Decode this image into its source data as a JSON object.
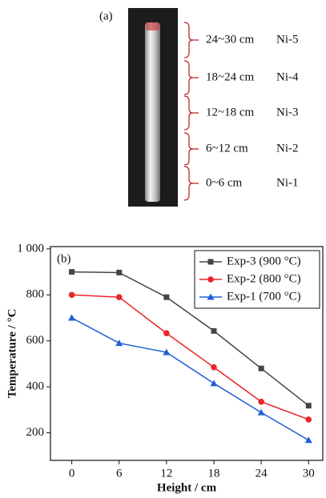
{
  "photo_panel": {
    "label": "(a)",
    "segments": [
      {
        "range": "24~30 cm",
        "sample": "Ni-5"
      },
      {
        "range": "18~24 cm",
        "sample": "Ni-4"
      },
      {
        "range": "12~18 cm",
        "sample": "Ni-3"
      },
      {
        "range": "6~12 cm",
        "sample": "Ni-2"
      },
      {
        "range": "0~6 cm",
        "sample": "Ni-1"
      }
    ]
  },
  "chart_data": {
    "type": "line",
    "panel_label": "(b)",
    "x_label": "Height / cm",
    "y_label": "Temperature / °C",
    "x": [
      0,
      6,
      12,
      18,
      24,
      30
    ],
    "series": [
      {
        "name": "Exp-3 (900 °C)",
        "color": "#454545",
        "marker": "square",
        "values": [
          900,
          897,
          790,
          643,
          480,
          318
        ]
      },
      {
        "name": "Exp-2 (800 °C)",
        "color": "#e8262b",
        "marker": "circle",
        "values": [
          800,
          790,
          633,
          485,
          335,
          258
        ]
      },
      {
        "name": "Exp-1 (700 °C)",
        "color": "#1f5fd6",
        "marker": "triangle",
        "values": [
          700,
          590,
          550,
          415,
          288,
          168
        ]
      }
    ],
    "xlim": [
      -2.7,
      31.8
    ],
    "ylim": [
      80,
      1010
    ],
    "xticks": [
      0,
      6,
      12,
      18,
      24,
      30
    ],
    "yticks": [
      200,
      400,
      600,
      800,
      {
        "value": 1000,
        "label": "1 000"
      }
    ],
    "legend": "upper right"
  }
}
